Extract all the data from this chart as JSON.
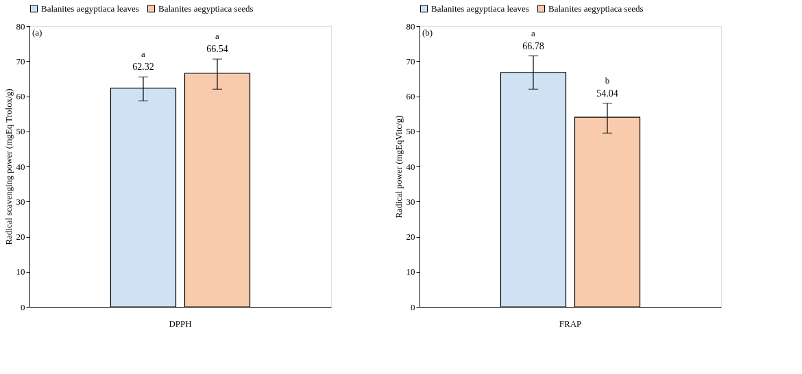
{
  "chart_data": [
    {
      "type": "bar",
      "categories": [
        "DPPH"
      ],
      "ylabel": "Radical scavenging power (mgEq Trolox/g)",
      "ylim": [
        0,
        80
      ],
      "yticks": [
        0,
        10,
        20,
        30,
        40,
        50,
        60,
        70,
        80
      ],
      "grid": false,
      "legend": "top",
      "data_labels": true,
      "series": [
        {
          "name": "Balanites aegyptiaca leaves",
          "color": "#cfe2f3",
          "values": [
            62.32
          ],
          "errors": [
            [
              58.7,
              65.5
            ]
          ]
        },
        {
          "name": "Balanites aegyptiaca seeds",
          "color": "#f8cbad",
          "values": [
            66.54
          ],
          "errors": [
            [
              62.0,
              70.6
            ]
          ]
        }
      ],
      "annotations": [
        "(a)",
        "a",
        "a"
      ]
    },
    {
      "type": "bar",
      "categories": [
        "FRAP"
      ],
      "ylabel": "Radical power (mgEqVitc/g)",
      "ylim": [
        0,
        80
      ],
      "yticks": [
        0,
        10,
        20,
        30,
        40,
        50,
        60,
        70,
        80
      ],
      "grid": false,
      "legend": "top",
      "data_labels": true,
      "series": [
        {
          "name": "Balanites aegyptiaca leaves",
          "color": "#cfe2f3",
          "values": [
            66.78
          ],
          "errors": [
            [
              62.0,
              71.5
            ]
          ]
        },
        {
          "name": "Balanites aegyptiaca seeds",
          "color": "#f8cbad",
          "values": [
            54.04
          ],
          "errors": [
            [
              49.5,
              58.0
            ]
          ]
        }
      ],
      "annotations": [
        "(b)",
        "a",
        "b"
      ]
    }
  ]
}
